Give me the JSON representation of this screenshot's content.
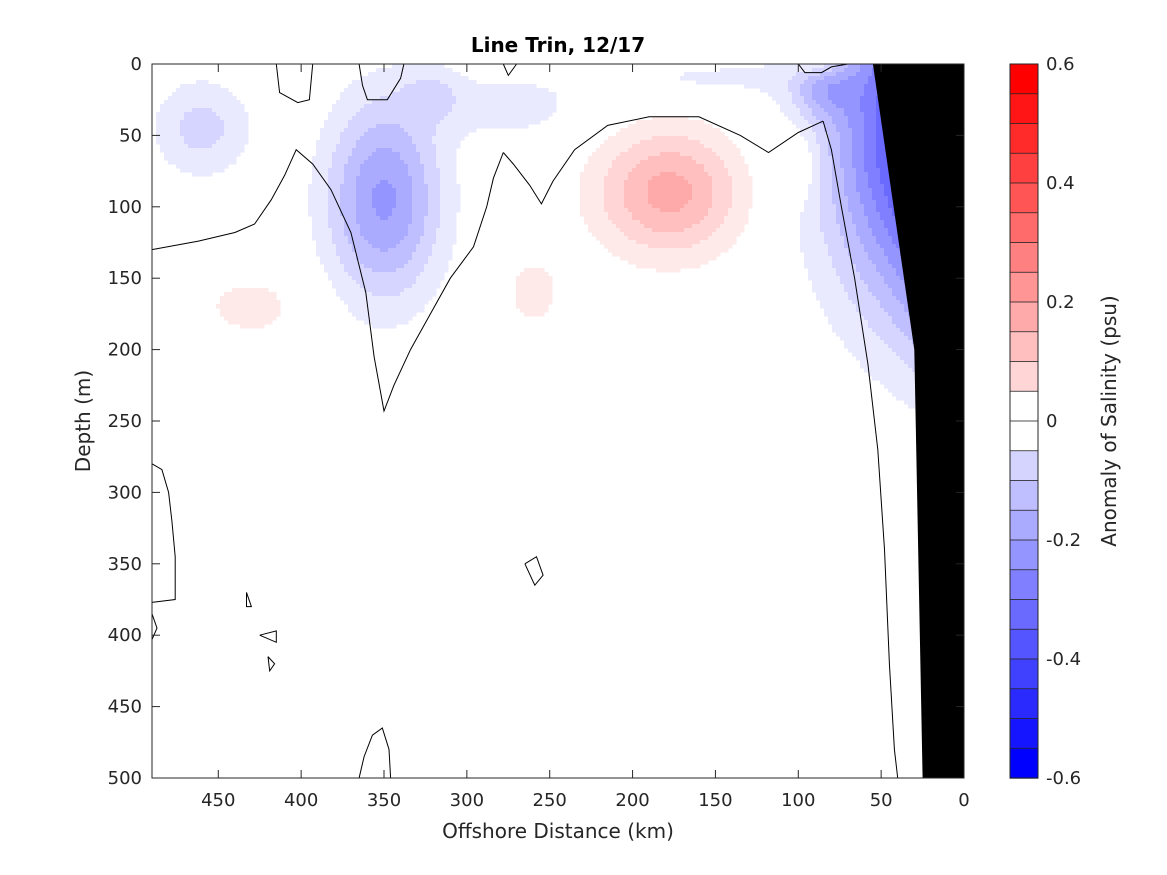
{
  "chart_data": {
    "type": "heatmap",
    "title": "Line Trin, 12/17",
    "xlabel": "Offshore Distance (km)",
    "ylabel": "Depth (m)",
    "xlim": [
      490,
      0
    ],
    "ylim": [
      0,
      500
    ],
    "x_reversed": true,
    "y_reversed": true,
    "x_ticks": [
      450,
      400,
      350,
      300,
      250,
      200,
      150,
      100,
      50,
      0
    ],
    "x_tick_labels": [
      "450",
      "400",
      "350",
      "300",
      "250",
      "200",
      "150",
      "100",
      "50",
      "0"
    ],
    "y_ticks": [
      0,
      50,
      100,
      150,
      200,
      250,
      300,
      350,
      400,
      450,
      500
    ],
    "y_tick_labels": [
      "0",
      "50",
      "100",
      "150",
      "200",
      "250",
      "300",
      "350",
      "400",
      "450",
      "500"
    ],
    "grid": false,
    "colorbar": {
      "label": "Anomaly of Salinity (psu)",
      "range": [
        -0.6,
        0.6
      ],
      "step": 0.05,
      "ticks": [
        -0.6,
        -0.4,
        -0.2,
        0,
        0.2,
        0.4,
        0.6
      ],
      "tick_labels": [
        "-0.6",
        "-0.4",
        "-0.2",
        "0",
        "0.2",
        "0.4",
        "0.6"
      ],
      "neg_color": "#0000ff",
      "pos_color": "#ff0000",
      "zero_color": "#ffffff"
    },
    "features": [
      {
        "sign": -1,
        "x": 460,
        "y": 45,
        "rx": 30,
        "ry": 35,
        "amp": 0.12
      },
      {
        "sign": -1,
        "x": 350,
        "y": 95,
        "rx": 35,
        "ry": 70,
        "amp": 0.26
      },
      {
        "sign": -1,
        "x": 270,
        "y": 30,
        "rx": 45,
        "ry": 25,
        "amp": 0.07
      },
      {
        "sign": -1,
        "x": 320,
        "y": 20,
        "rx": 20,
        "ry": 20,
        "amp": 0.07
      },
      {
        "sign": -1,
        "x": 160,
        "y": 10,
        "rx": 60,
        "ry": 15,
        "amp": 0.06
      },
      {
        "sign": -1,
        "x": 85,
        "y": 20,
        "rx": 18,
        "ry": 18,
        "amp": 0.1
      },
      {
        "sign": -1,
        "x": 18,
        "y": 50,
        "rx": 60,
        "ry": 120,
        "amp": 0.5
      },
      {
        "sign": -1,
        "x": 5,
        "y": 170,
        "rx": 30,
        "ry": 60,
        "amp": 0.1
      },
      {
        "sign": 1,
        "x": 178,
        "y": 90,
        "rx": 45,
        "ry": 45,
        "amp": 0.22
      },
      {
        "sign": 1,
        "x": 260,
        "y": 160,
        "rx": 20,
        "ry": 30,
        "amp": 0.07
      },
      {
        "sign": 1,
        "x": 430,
        "y": 170,
        "rx": 35,
        "ry": 25,
        "amp": 0.07
      },
      {
        "sign": 1,
        "x": 100,
        "y": 70,
        "rx": 15,
        "ry": 25,
        "amp": 0.07
      },
      {
        "sign": 1,
        "x": 85,
        "y": 2,
        "rx": 15,
        "ry": 6,
        "amp": 0.07
      }
    ],
    "zero_contours": [
      {
        "points": [
          [
            490,
            130
          ],
          [
            462,
            124
          ],
          [
            440,
            118
          ],
          [
            428,
            112
          ],
          [
            418,
            95
          ],
          [
            410,
            78
          ],
          [
            403,
            60
          ],
          [
            393,
            70
          ],
          [
            382,
            88
          ],
          [
            370,
            118
          ],
          [
            361,
            160
          ],
          [
            356,
            205
          ],
          [
            350,
            243
          ],
          [
            344,
            225
          ],
          [
            334,
            200
          ],
          [
            322,
            175
          ],
          [
            310,
            150
          ],
          [
            296,
            128
          ],
          [
            288,
            100
          ],
          [
            284,
            80
          ],
          [
            278,
            62
          ]
        ]
      },
      {
        "points": [
          [
            278,
            62
          ],
          [
            272,
            70
          ],
          [
            262,
            85
          ],
          [
            255,
            98
          ],
          [
            248,
            82
          ],
          [
            235,
            60
          ],
          [
            215,
            43
          ],
          [
            190,
            37
          ],
          [
            160,
            37
          ],
          [
            135,
            50
          ],
          [
            118,
            62
          ],
          [
            100,
            48
          ],
          [
            85,
            40
          ]
        ]
      },
      {
        "points": [
          [
            85,
            40
          ],
          [
            80,
            60
          ],
          [
            74,
            100
          ],
          [
            66,
            150
          ],
          [
            58,
            210
          ],
          [
            52,
            270
          ],
          [
            48,
            340
          ],
          [
            45,
            420
          ],
          [
            42,
            480
          ],
          [
            40,
            500
          ]
        ]
      },
      {
        "points": [
          [
            490,
            280
          ],
          [
            484,
            284
          ],
          [
            480,
            300
          ],
          [
            478,
            320
          ],
          [
            476,
            345
          ],
          [
            476,
            375
          ],
          [
            490,
            377
          ]
        ]
      },
      {
        "points": [
          [
            365,
            500
          ],
          [
            362,
            485
          ],
          [
            357,
            470
          ],
          [
            351,
            465
          ],
          [
            347,
            480
          ],
          [
            346,
            500
          ]
        ]
      },
      {
        "points": [
          [
            265,
            350
          ],
          [
            258,
            345
          ],
          [
            254,
            358
          ],
          [
            259,
            365
          ],
          [
            265,
            350
          ]
        ]
      },
      {
        "points": [
          [
            433,
            370
          ],
          [
            430,
            380
          ],
          [
            433,
            380
          ],
          [
            433,
            370
          ]
        ]
      },
      {
        "points": [
          [
            425,
            400
          ],
          [
            415,
            397
          ],
          [
            415,
            405
          ],
          [
            425,
            400
          ]
        ]
      },
      {
        "points": [
          [
            420,
            415
          ],
          [
            416,
            420
          ],
          [
            419,
            425
          ],
          [
            420,
            415
          ]
        ]
      },
      {
        "points": [
          [
            490,
            385
          ],
          [
            487,
            395
          ],
          [
            490,
            403
          ],
          [
            490,
            385
          ]
        ]
      },
      {
        "points": [
          [
            278,
            0
          ],
          [
            275,
            8
          ],
          [
            270,
            0
          ]
        ]
      },
      {
        "points": [
          [
            365,
            0
          ],
          [
            363,
            15
          ],
          [
            360,
            25
          ],
          [
            348,
            25
          ],
          [
            340,
            10
          ],
          [
            338,
            0
          ]
        ]
      },
      {
        "points": [
          [
            415,
            0
          ],
          [
            413,
            20
          ],
          [
            402,
            27
          ],
          [
            395,
            25
          ],
          [
            393,
            0
          ]
        ]
      },
      {
        "points": [
          [
            100,
            0
          ],
          [
            96,
            6
          ],
          [
            86,
            6
          ],
          [
            80,
            2
          ],
          [
            70,
            0
          ]
        ]
      }
    ],
    "land_polygon": [
      [
        0,
        0
      ],
      [
        0,
        500
      ],
      [
        25,
        500
      ],
      [
        30,
        200
      ],
      [
        55,
        0
      ]
    ]
  }
}
